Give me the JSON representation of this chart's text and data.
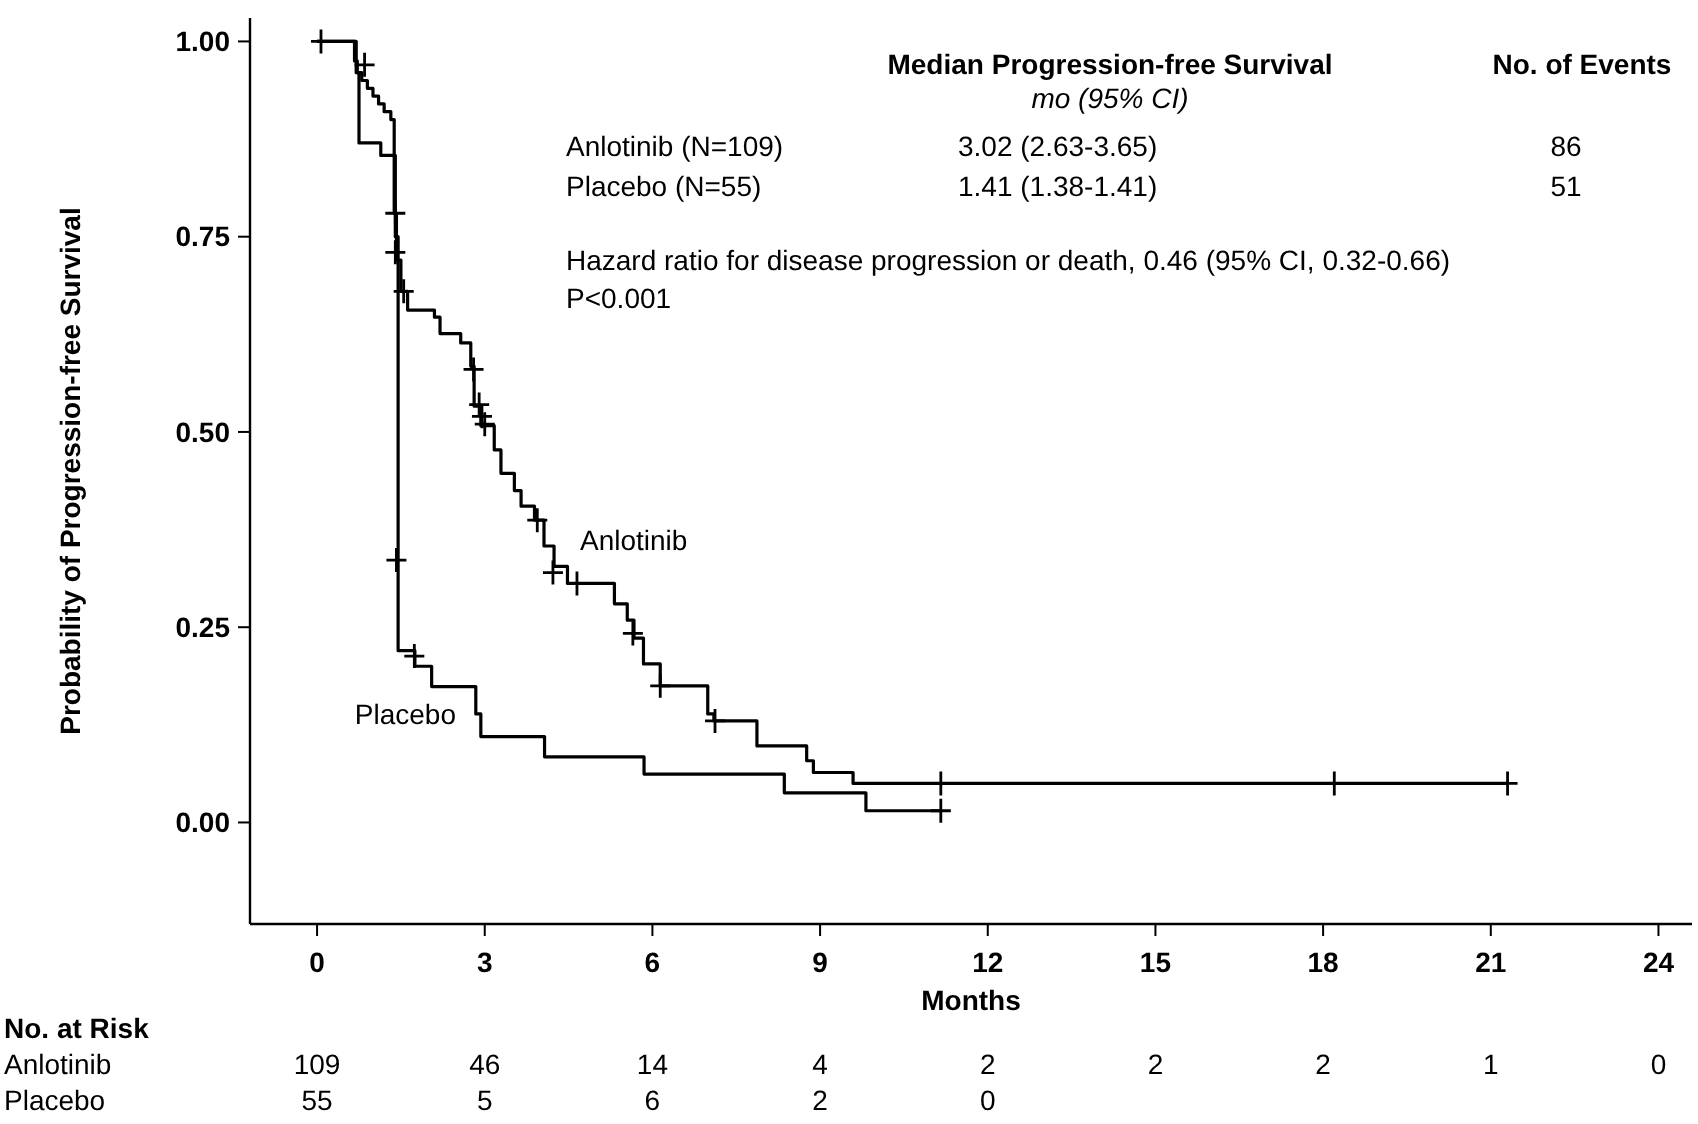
{
  "chart_data": {
    "type": "step",
    "xlabel": "Months",
    "ylabel": "Probability of Progression-free Survival",
    "xlim": [
      -1.2,
      24.6
    ],
    "ylim": [
      -0.13,
      1.03
    ],
    "xticks": [
      0,
      3,
      6,
      9,
      12,
      15,
      18,
      21,
      24
    ],
    "yticks": [
      {
        "value": 0,
        "label": "0.00"
      },
      {
        "value": 0.25,
        "label": "0.25"
      },
      {
        "value": 0.5,
        "label": "0.50"
      },
      {
        "value": 0.75,
        "label": "0.75"
      },
      {
        "value": 1,
        "label": "1.00"
      }
    ],
    "grid": false,
    "line_style": "solid",
    "series": [
      {
        "name": "Anlotinib",
        "color": "#000000",
        "x": [
          0,
          0.67,
          0.72,
          0.8,
          0.9,
          1.0,
          1.1,
          1.2,
          1.32,
          1.38,
          1.42,
          1.5,
          1.62,
          2.1,
          2.2,
          2.57,
          2.75,
          2.81,
          2.93,
          3.17,
          3.29,
          3.53,
          3.65,
          3.89,
          4.06,
          4.24,
          4.48,
          5.32,
          5.55,
          5.67,
          5.84,
          6.14,
          6.99,
          7.1,
          7.87,
          8.76,
          8.88,
          9.59,
          21.3
        ],
        "values": [
          1,
          0.975,
          0.96,
          0.95,
          0.94,
          0.93,
          0.92,
          0.91,
          0.9,
          0.78,
          0.72,
          0.68,
          0.656,
          0.647,
          0.626,
          0.614,
          0.584,
          0.533,
          0.508,
          0.477,
          0.447,
          0.425,
          0.405,
          0.387,
          0.354,
          0.328,
          0.306,
          0.28,
          0.259,
          0.236,
          0.203,
          0.175,
          0.139,
          0.13,
          0.098,
          0.079,
          0.064,
          0.05,
          0.05
        ]
      },
      {
        "name": "Placebo",
        "color": "#000000",
        "x": [
          0,
          0.7,
          0.75,
          1.14,
          1.4,
          1.45,
          1.75,
          2.05,
          2.84,
          2.93,
          4.07,
          5.85,
          8.36,
          9.82,
          11.16
        ],
        "values": [
          1,
          0.96,
          0.87,
          0.854,
          0.75,
          0.22,
          0.2,
          0.174,
          0.139,
          0.11,
          0.084,
          0.062,
          0.038,
          0.015,
          0.015
        ]
      },
      {
        "type": "scatter",
        "marker": "cross",
        "color": "#000000",
        "x": [
          0.07,
          0.85,
          1.4,
          1.4,
          1.55,
          2.8,
          2.9,
          2.95,
          3.0,
          3.94,
          4.22,
          4.65,
          5.65,
          6.14,
          7.12,
          11.16,
          18.2,
          21.3
        ],
        "values": [
          1,
          0.97,
          0.78,
          0.73,
          0.68,
          0.58,
          0.535,
          0.52,
          0.51,
          0.387,
          0.32,
          0.306,
          0.242,
          0.175,
          0.13,
          0.05,
          0.05,
          0.05
        ]
      },
      {
        "type": "scatter",
        "marker": "cross",
        "color": "#000000",
        "x": [
          1.42,
          1.74,
          11.16
        ],
        "values": [
          0.336,
          0.213,
          0.015
        ]
      }
    ],
    "annotations": [
      "Median Progression-free Survival",
      "mo (95% CI)",
      "No. of Events",
      "Anlotinib (N=109)",
      "3.02 (2.63-3.65)",
      "86",
      "Placebo (N=55)",
      "1.41 (1.38-1.41)",
      "51",
      "Hazard ratio for disease progression or death, 0.46 (95% CI, 0.32-0.66)",
      "P<0.001",
      "No. at Risk",
      "Anlotinib",
      "109",
      "46",
      "14",
      "4",
      "2",
      "2",
      "2",
      "1",
      "0",
      "Placebo",
      "55",
      "5",
      "6",
      "2",
      "0"
    ]
  }
}
